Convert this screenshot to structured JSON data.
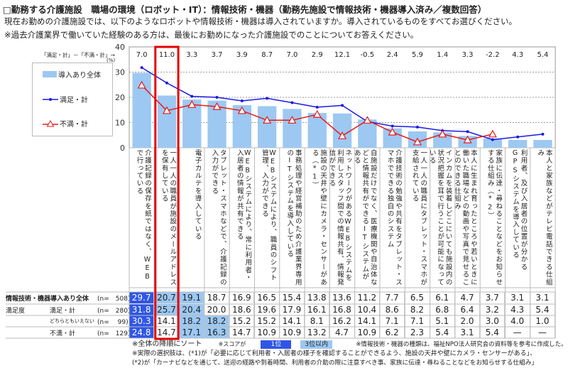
{
  "header": {
    "title": "□勤務する介護施設　職場の環境（ロボット・IT）：情報技術・機器（勤務先施設で情報技術・機器導入済み／複数回答）",
    "question": "現在お勤めの介護施設では、以下のようなロボットや情報技術・機器は導入されていますか。導入されているものをすべてお選びください。",
    "note": "※過去介護業界で働いていた経験のある方は、最後にお勤めになった介護施設でのことについてお答えください。"
  },
  "chart_data": {
    "type": "bar",
    "ylabel": "(%)",
    "ylim": [
      0,
      40
    ],
    "yticks": [
      0,
      10,
      20,
      30,
      40
    ],
    "grid": true,
    "legend_position": "left",
    "diff_label": "「満足・計」－「不満・計」→",
    "categories": [
      "介護記録の保存を紙ではなく、WEBで行っている",
      "一人一人の職員が施設のメールアドレスを保有している",
      "電子カルテを導入している",
      "タブレット・スマホなどで、介護記録の入力ができる",
      "WEBシステムにより、常に利用者・入居者の情報が共有できる",
      "WEBシステムにより、職員のシフト管理、入力ができる",
      "事務処理や経営補助のため介護業界専用のITシステムを導入している",
      "施設の天井や壁にカメラ・センサーがある（*1）",
      "ネットワークがあるWEBシステムを利用しスタッフ間での情報共有、情報発信ができる",
      "自施設だけでなく、医療機関や自治体などと情報共有ができるITシステムがある",
      "介護技術の勉強や共有をタブレット・スマホでできる独自のシステム",
      "一人一人の職員にタブレット・スマホが支給されている",
      "インカムを装着しどこにいても施設内の状況把握を耳で行うことが可能になっている",
      "本人に生まれ育ったところや若いときに働いた職場などの動画や写真で見せることのできる仕組み",
      "家族に伝達・尋ねることなどをお知らせする仕組み（*2）",
      "利用者、及び入居者の位置が分かるGPSシステムを導入している",
      "本人と家族などがテレビ電話できる仕組み"
    ],
    "diffs": [
      "7.0",
      "11.0",
      "3.3",
      "3.7",
      "3.9",
      "8.7",
      "7.0",
      "2.9",
      "12.1",
      "-0.5",
      "2.4",
      "5.9",
      "1.4",
      "3.3",
      "-2.2",
      "4.3",
      "5.4"
    ],
    "highlight_index": 1,
    "series": [
      {
        "name": "導入あり全体",
        "kind": "bar",
        "color": "#9cc8f2",
        "values": [
          29.7,
          20.7,
          19.1,
          18.7,
          16.9,
          16.5,
          15.4,
          13.8,
          13.6,
          11.2,
          7.7,
          6.5,
          6.1,
          4.7,
          3.7,
          3.1,
          3.1
        ]
      },
      {
        "name": "満足・計",
        "kind": "line",
        "color": "#1a1ae6",
        "values": [
          31.8,
          25.7,
          20.4,
          20.0,
          18.6,
          19.6,
          17.9,
          16.1,
          16.8,
          10.4,
          8.6,
          8.2,
          6.8,
          6.4,
          3.2,
          4.3,
          5.4
        ]
      },
      {
        "name": "不満・計",
        "kind": "line",
        "color": "#e61a1a",
        "values": [
          24.8,
          14.7,
          17.1,
          16.3,
          14.7,
          10.9,
          10.9,
          13.2,
          4.7,
          10.9,
          6.2,
          2.3,
          5.4,
          3.1,
          5.4,
          null,
          null
        ]
      }
    ]
  },
  "table": {
    "rows": [
      {
        "group": "情報技術・機器導入あり全体",
        "label": "",
        "n": "(n=　508)",
        "values": [
          "29.7",
          "20.7",
          "19.1",
          "18.7",
          "16.9",
          "16.5",
          "15.4",
          "13.8",
          "13.6",
          "11.2",
          "7.7",
          "6.5",
          "6.1",
          "4.7",
          "3.7",
          "3.1",
          "3.1"
        ],
        "rank1": [
          0
        ],
        "rank3": [
          1,
          2
        ]
      },
      {
        "group": "満足度",
        "label": "満足・計",
        "n": "(n=　280)",
        "values": [
          "31.8",
          "25.7",
          "20.4",
          "20.0",
          "18.6",
          "19.6",
          "17.9",
          "16.1",
          "16.8",
          "10.4",
          "8.6",
          "8.2",
          "6.8",
          "6.4",
          "3.2",
          "4.3",
          "5.4"
        ],
        "rank1": [
          0
        ],
        "rank3": [
          1,
          2
        ]
      },
      {
        "group": "",
        "label": "どちらともいえない",
        "n": "(n=　 99)",
        "values": [
          "30.3",
          "14.1",
          "18.2",
          "18.2",
          "15.2",
          "15.2",
          "14.1",
          "8.1",
          "16.2",
          "14.1",
          "7.1",
          "7.1",
          "5.1",
          "2.0",
          "3.0",
          "4.0",
          "1.0"
        ],
        "rank1": [
          0
        ],
        "rank3": [
          2,
          3
        ]
      },
      {
        "group": "",
        "label": "不満・計",
        "n": "(n=　129)",
        "values": [
          "24.8",
          "14.7",
          "17.1",
          "16.3",
          "14.7",
          "10.9",
          "10.9",
          "13.2",
          "4.7",
          "10.9",
          "6.2",
          "2.3",
          "5.4",
          "3.1",
          "5.4",
          "—",
          "—"
        ],
        "rank1": [
          0
        ],
        "rank3": [
          2,
          3
        ]
      }
    ]
  },
  "footer": {
    "sort_note": "※全体の降順にソート",
    "score_note": "※スコアが",
    "badge_rank1": "1位",
    "badge_rank3": "3位以内",
    "source_note": "※情報技術・機器の種類は、福祉NPO法人研究会の資料等を参考に作成した。",
    "choice_note1": "※実際の選択肢は、(*1)が「必要に応じて利用者・入居者の様子を確認することができるよう、施設の天井や壁にカメラ・センサーがある」、",
    "choice_note2": "(*2)が「カーナビなどを通じて、送迎の経路や到着時間、利用者の介助の際に注意すべき事、家族に伝達・尋ねることなどをお知らせする仕組み」",
    "colors": {
      "rank1": "#2f56e6",
      "rank3": "#9cc8f2"
    }
  }
}
